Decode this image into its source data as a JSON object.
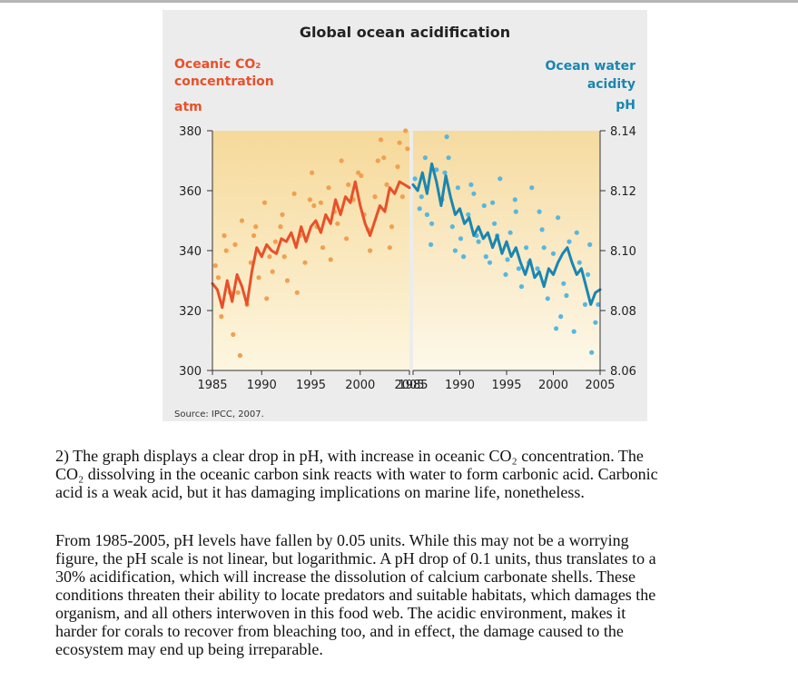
{
  "chart_data": {
    "type": "scatter",
    "title": "Global ocean acidification",
    "source": "Source: IPCC, 2007.",
    "left_axis": {
      "label_lines": [
        "Oceanic CO₂",
        "concentration"
      ],
      "unit": "atm",
      "ticks": [
        "380",
        "360",
        "340",
        "320",
        "300"
      ],
      "ylim": [
        300,
        380
      ],
      "xticks": [
        "1985",
        "1990",
        "1995",
        "2000",
        "2005"
      ],
      "xlim": [
        1985,
        2005
      ]
    },
    "right_axis": {
      "label_lines": [
        "Ocean water",
        "acidity"
      ],
      "unit": "pH",
      "ticks": [
        "8.14",
        "8.12",
        "8.10",
        "8.08",
        "8.06"
      ],
      "ylim": [
        8.06,
        8.14
      ],
      "xticks": [
        "1985",
        "1990",
        "1995",
        "2000",
        "2005"
      ],
      "xlim": [
        1985,
        2005
      ]
    },
    "series": [
      {
        "name": "Oceanic CO₂ concentration",
        "color": "#e8502a",
        "dot_color": "#f0a050",
        "trend": {
          "x": [
            1985,
            1985.5,
            1986,
            1986.5,
            1987,
            1987.5,
            1988,
            1988.5,
            1989,
            1989.5,
            1990,
            1990.5,
            1991,
            1991.5,
            1992,
            1992.5,
            1993,
            1993.5,
            1994,
            1994.5,
            1995,
            1995.5,
            1996,
            1996.5,
            1997,
            1997.5,
            1998,
            1998.5,
            1999,
            1999.5,
            2000,
            2000.5,
            2001,
            2001.5,
            2002,
            2002.5,
            2003,
            2003.5,
            2004,
            2004.5,
            2005
          ],
          "y": [
            329,
            327,
            321,
            330,
            323,
            332,
            328,
            322,
            333,
            341,
            338,
            342,
            340,
            339,
            344,
            343,
            346,
            341,
            348,
            343,
            348,
            350,
            346,
            352,
            349,
            357,
            352,
            358,
            356,
            363,
            355,
            349,
            345,
            350,
            355,
            353,
            361,
            359,
            363,
            362,
            361
          ]
        },
        "observations": {
          "x": [
            1985.3,
            1985.9,
            1986.4,
            1987.1,
            1987.6,
            1988.0,
            1988.5,
            1989.2,
            1989.7,
            1990.3,
            1990.8,
            1991.4,
            1992.1,
            1992.6,
            1993.3,
            1993.9,
            1994.4,
            1995.1,
            1995.6,
            1996.2,
            1996.8,
            1997.4,
            1998.1,
            1998.6,
            1999.3,
            1999.8,
            2000.4,
            2001.0,
            2001.5,
            2002.1,
            2002.7,
            2003.2,
            2003.8,
            2004.3,
            2004.8,
            1985.6,
            1986.2,
            1987.8,
            1988.9,
            1990.5,
            1991.9,
            1993.6,
            1995.3,
            1997.0,
            1998.8,
            2000.8,
            2002.4,
            2004.0,
            1986.8,
            1989.4,
            1992.3,
            1994.9,
            1997.7,
            2000.1,
            2003.0,
            1987.3,
            1991.1,
            1996.0,
            2001.8,
            2004.6
          ],
          "y": [
            335,
            318,
            340,
            312,
            326,
            350,
            322,
            345,
            331,
            356,
            338,
            343,
            352,
            330,
            359,
            345,
            336,
            366,
            348,
            341,
            361,
            353,
            370,
            344,
            357,
            366,
            352,
            340,
            358,
            377,
            362,
            348,
            368,
            358,
            374,
            331,
            345,
            305,
            336,
            324,
            348,
            326,
            355,
            337,
            362,
            347,
            371,
            376,
            326,
            348,
            338,
            357,
            349,
            365,
            341,
            342,
            333,
            356,
            370,
            380
          ]
        }
      },
      {
        "name": "Ocean water acidity",
        "color": "#1a86b0",
        "dot_color": "#56b7e0",
        "trend": {
          "x": [
            1985,
            1985.5,
            1986,
            1986.5,
            1987,
            1987.5,
            1988,
            1988.5,
            1989,
            1989.5,
            1990,
            1990.5,
            1991,
            1991.5,
            1992,
            1992.5,
            1993,
            1993.5,
            1994,
            1994.5,
            1995,
            1995.5,
            1996,
            1996.5,
            1997,
            1997.5,
            1998,
            1998.5,
            1999,
            1999.5,
            2000,
            2000.5,
            2001,
            2001.5,
            2002,
            2002.5,
            2003,
            2003.5,
            2004,
            2004.5,
            2005
          ],
          "y": [
            8.122,
            8.12,
            8.126,
            8.119,
            8.129,
            8.123,
            8.115,
            8.125,
            8.118,
            8.112,
            8.114,
            8.109,
            8.111,
            8.105,
            8.108,
            8.104,
            8.106,
            8.101,
            8.105,
            8.099,
            8.103,
            8.098,
            8.101,
            8.096,
            8.092,
            8.097,
            8.091,
            8.093,
            8.088,
            8.094,
            8.092,
            8.096,
            8.099,
            8.101,
            8.096,
            8.092,
            8.094,
            8.088,
            8.082,
            8.086,
            8.087
          ]
        },
        "observations": {
          "x": [
            1985.2,
            1985.7,
            1986.3,
            1986.9,
            1987.5,
            1988.1,
            1988.6,
            1989.2,
            1989.8,
            1990.4,
            1990.9,
            1991.5,
            1992.0,
            1992.6,
            1993.2,
            1993.7,
            1994.3,
            1994.9,
            1995.4,
            1996.0,
            1996.6,
            1997.1,
            1997.7,
            1998.3,
            1998.8,
            1999.4,
            2000.0,
            2000.5,
            2001.1,
            2001.7,
            2002.2,
            2002.8,
            2003.4,
            2003.9,
            2004.5,
            1985.9,
            1987.0,
            1988.4,
            1989.5,
            1991.2,
            1992.8,
            1994.0,
            1995.9,
            1997.4,
            1999.0,
            2000.8,
            2002.5,
            2004.1,
            1986.5,
            1988.8,
            1991.8,
            1993.5,
            1996.3,
            1998.5,
            2001.4,
            2003.7,
            1990.1,
            1995.1,
            2000.3,
            2004.8
          ],
          "y": [
            8.124,
            8.114,
            8.131,
            8.102,
            8.127,
            8.117,
            8.138,
            8.108,
            8.121,
            8.098,
            8.112,
            8.119,
            8.103,
            8.115,
            8.096,
            8.109,
            8.124,
            8.092,
            8.106,
            8.113,
            8.088,
            8.101,
            8.121,
            8.094,
            8.107,
            8.084,
            8.099,
            8.111,
            8.089,
            8.103,
            8.073,
            8.096,
            8.082,
            8.102,
            8.076,
            8.118,
            8.109,
            8.126,
            8.1,
            8.122,
            8.098,
            8.105,
            8.117,
            8.096,
            8.101,
            8.078,
            8.106,
            8.066,
            8.112,
            8.131,
            8.105,
            8.116,
            8.094,
            8.113,
            8.085,
            8.092,
            8.104,
            8.097,
            8.074,
            8.082
          ]
        }
      }
    ]
  },
  "text": {
    "paragraph1": [
      "2) The graph displays a clear drop in pH, with increase in oceanic CO₂ concentration. The",
      "CO₂ dissolving in the oceanic carbon sink reacts with water to form carbonic acid. Carbonic",
      "acid is a weak acid, but it has damaging implications on marine life, nonetheless."
    ],
    "paragraph2": [
      "From 1985-2005, pH levels have fallen by 0.05 units. While this may not be a worrying",
      "figure, the pH scale is not linear, but logarithmic. A pH drop of 0.1 units, thus translates to a",
      "30% acidification, which will increase the dissolution of calcium carbonate shells. These",
      "conditions threaten their ability to locate predators and suitable habitats, which damages the",
      "organism, and all others interwoven in this food web. The acidic environment, makes it",
      "harder for corals to recover from bleaching too, and in effect, the damage caused to the",
      "ecosystem may end up being irreparable."
    ]
  }
}
